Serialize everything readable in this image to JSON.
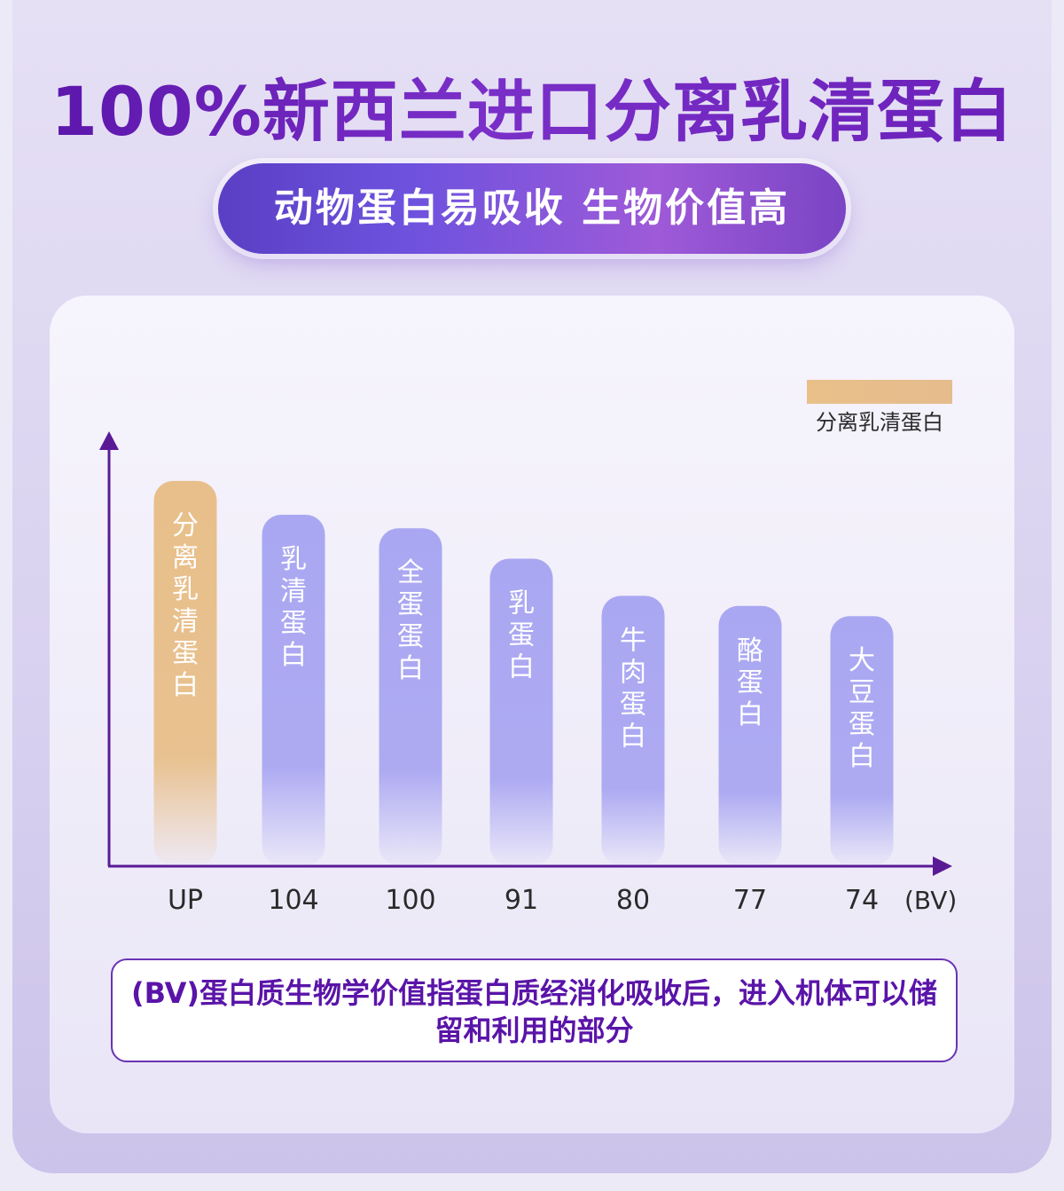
{
  "header": {
    "title": "100%新西兰进口分离乳清蛋白",
    "subtitle": "动物蛋白易吸收 生物价值高"
  },
  "chart_data": {
    "type": "bar",
    "title": "",
    "xlabel": "",
    "ylabel": "",
    "x_unit": "(BV)",
    "legend": {
      "label": "分离乳清蛋白",
      "placement": "top-right",
      "color": "#e8bf8a"
    },
    "bar_colors": {
      "highlight": "#e8bf8a",
      "normal": "#aaa7f2"
    },
    "axis_color": "#5a1a96",
    "categories": [
      "分离乳清蛋白",
      "乳清蛋白",
      "全蛋蛋白",
      "乳蛋白",
      "牛肉蛋白",
      "酪蛋白",
      "大豆蛋白"
    ],
    "tick_labels": [
      "UP",
      "104",
      "100",
      "91",
      "80",
      "77",
      "74"
    ],
    "values": [
      114,
      104,
      100,
      91,
      80,
      77,
      74
    ],
    "ylim": [
      0,
      125
    ]
  },
  "note": {
    "text": "(BV)蛋白质生物学价值指蛋白质经消化吸收后，进入机体可以储留和利用的部分"
  }
}
